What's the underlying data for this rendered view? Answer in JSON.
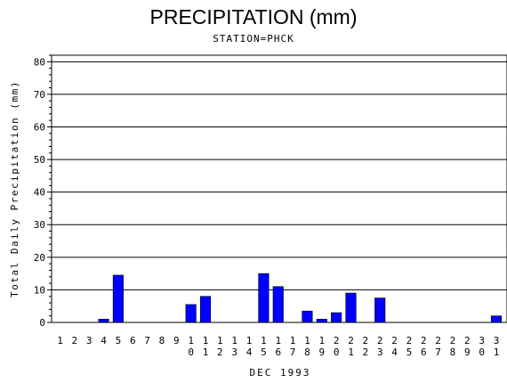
{
  "chart_data": {
    "type": "bar",
    "title": "PRECIPITATION (mm)",
    "subtitle": "STATION=PHCK",
    "xlabel": "DEC 1993",
    "ylabel": "Total Daily Precipitation (mm)",
    "categories": [
      "1",
      "2",
      "3",
      "4",
      "5",
      "6",
      "7",
      "8",
      "9",
      "10",
      "11",
      "12",
      "13",
      "14",
      "15",
      "16",
      "17",
      "18",
      "19",
      "20",
      "21",
      "22",
      "23",
      "24",
      "25",
      "26",
      "27",
      "28",
      "29",
      "30",
      "31"
    ],
    "values": [
      0,
      0,
      0,
      1,
      14.5,
      0,
      0,
      0,
      0,
      5.5,
      8,
      0,
      0,
      0,
      15,
      11,
      0,
      3.5,
      1,
      3,
      9,
      0,
      7.5,
      0,
      0,
      0,
      0,
      0,
      0,
      0,
      2
    ],
    "ylim": [
      0,
      82
    ],
    "yticks": [
      0,
      10,
      20,
      30,
      40,
      50,
      60,
      70,
      80
    ],
    "grid": true,
    "bar_color": "#0000ff"
  }
}
